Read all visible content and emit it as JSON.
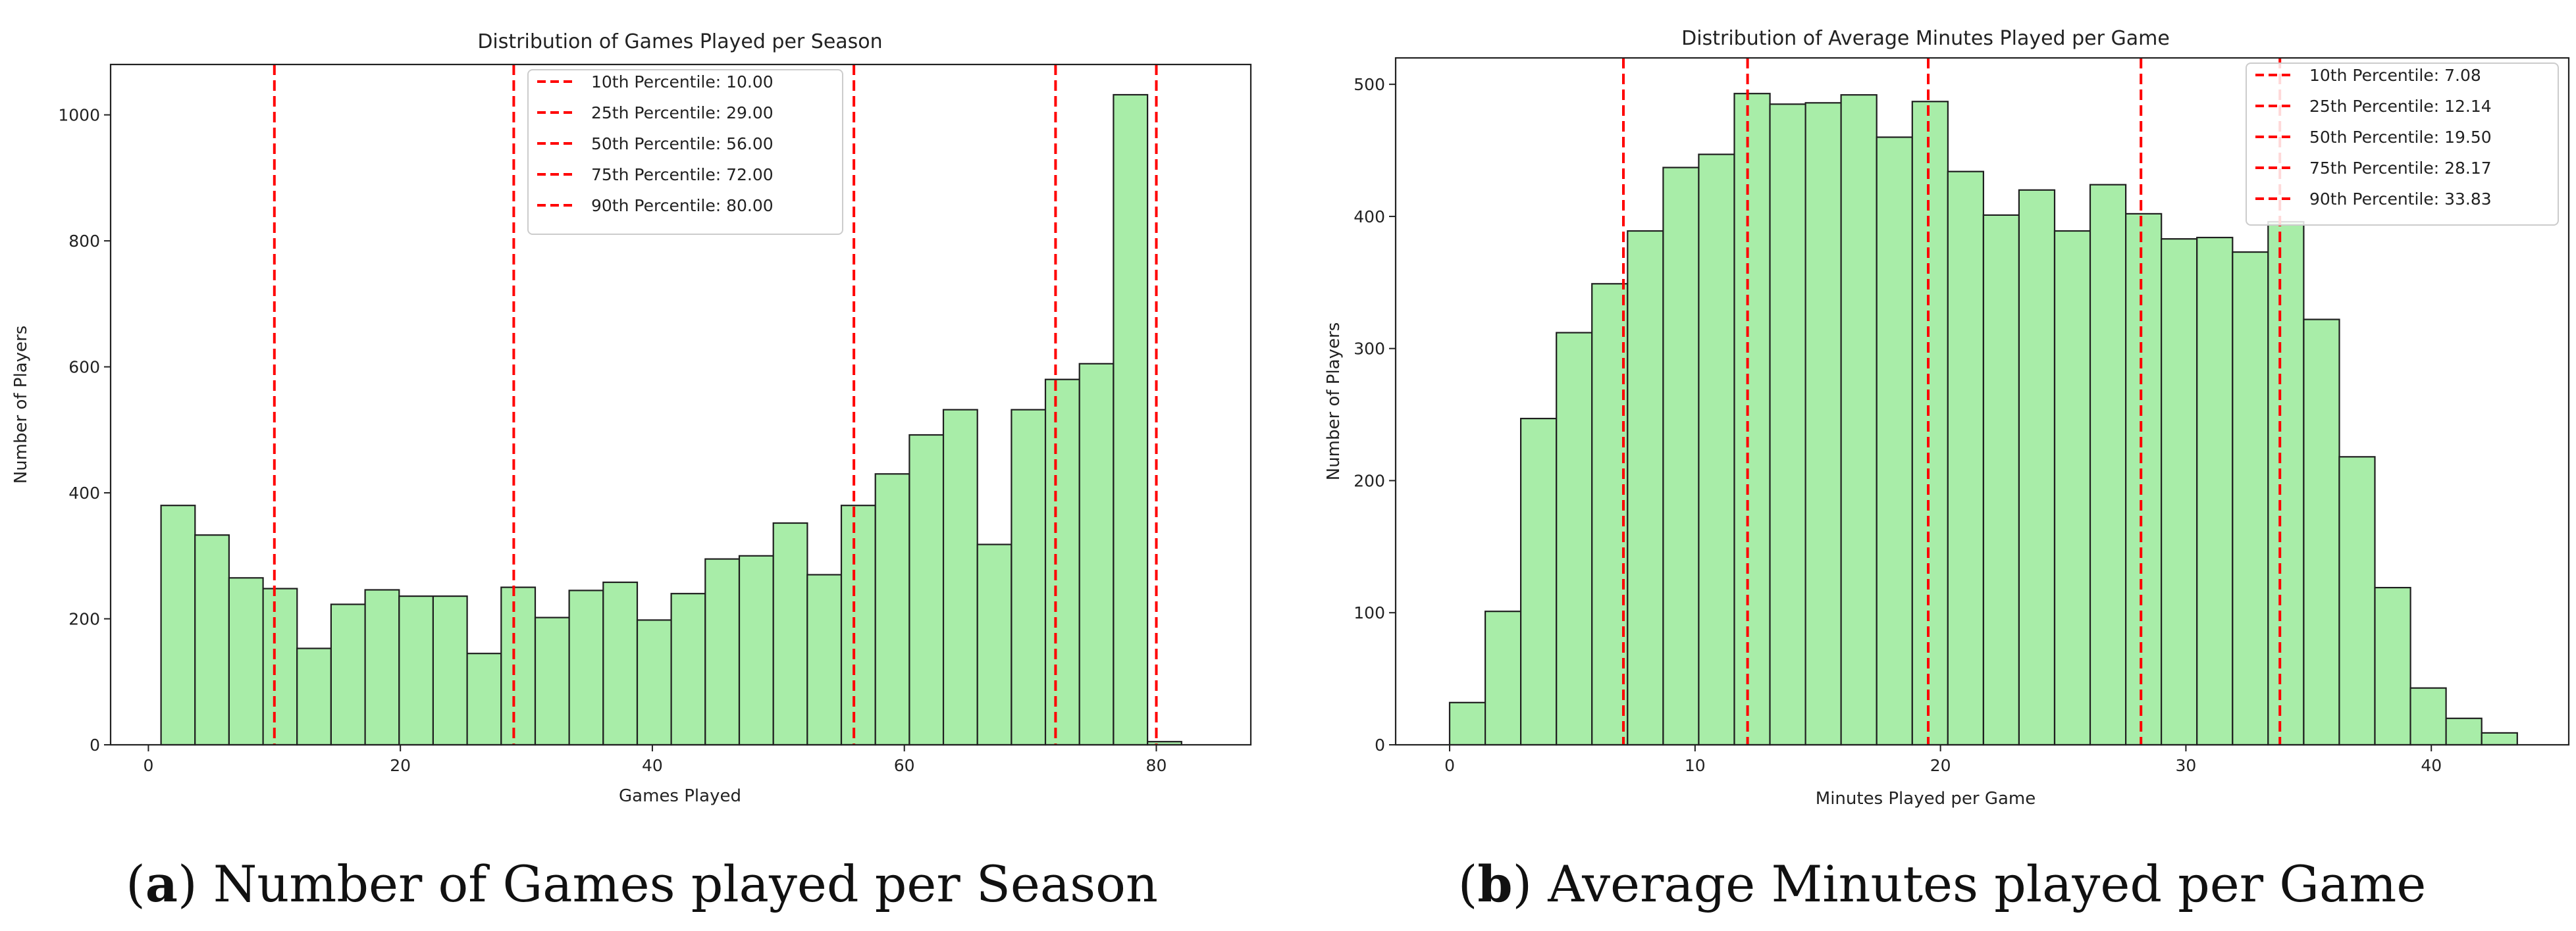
{
  "chart_data": [
    {
      "type": "bar",
      "panel": "a",
      "title": "Distribution of Games Played per Season",
      "xlabel": "Games Played",
      "ylabel": "Number of Players",
      "caption_letter": "a",
      "caption_text": "Number of Games played per Season",
      "bin_start": 1,
      "bin_width": 2.7,
      "values": [
        380,
        333,
        265,
        248,
        153,
        223,
        246,
        236,
        236,
        145,
        250,
        202,
        245,
        258,
        198,
        240,
        295,
        300,
        352,
        270,
        380,
        430,
        492,
        532,
        318,
        532,
        580,
        605,
        1032,
        5
      ],
      "xlim": [
        -3,
        87.5
      ],
      "ylim": [
        0,
        1080
      ],
      "xticks": [
        0,
        20,
        40,
        60,
        80
      ],
      "yticks": [
        0,
        200,
        400,
        600,
        800,
        1000
      ],
      "bar_color": "#a8eda8",
      "percentile_color": "#ff0000",
      "legend_position": "top-right",
      "percentiles": [
        {
          "label": "10th Percentile: 10.00",
          "value": 10.0
        },
        {
          "label": "25th Percentile: 29.00",
          "value": 29.0
        },
        {
          "label": "50th Percentile: 56.00",
          "value": 56.0
        },
        {
          "label": "75th Percentile: 72.00",
          "value": 72.0
        },
        {
          "label": "90th Percentile: 80.00",
          "value": 80.0
        }
      ]
    },
    {
      "type": "bar",
      "panel": "b",
      "title": "Distribution of Average Minutes Played per Game",
      "xlabel": "Minutes Played per Game",
      "ylabel": "Number of Players",
      "caption_letter": "b",
      "caption_text": "Average Minutes played per Game",
      "bin_start": 0,
      "bin_width": 1.45,
      "values": [
        32,
        101,
        247,
        312,
        349,
        389,
        437,
        447,
        493,
        485,
        486,
        492,
        460,
        487,
        434,
        401,
        420,
        389,
        424,
        402,
        383,
        384,
        373,
        396,
        322,
        218,
        119,
        43,
        20,
        9
      ],
      "xlim": [
        -2.2,
        45.6
      ],
      "ylim": [
        0,
        520
      ],
      "xticks": [
        0,
        10,
        20,
        30,
        40
      ],
      "yticks": [
        0,
        100,
        200,
        300,
        400,
        500
      ],
      "bar_color": "#a8eda8",
      "percentile_color": "#ff0000",
      "legend_position": "top-right",
      "percentiles": [
        {
          "label": "10th Percentile: 7.08",
          "value": 7.08
        },
        {
          "label": "25th Percentile: 12.14",
          "value": 12.14
        },
        {
          "label": "50th Percentile: 19.50",
          "value": 19.5
        },
        {
          "label": "75th Percentile: 28.17",
          "value": 28.17
        },
        {
          "label": "90th Percentile: 33.83",
          "value": 33.83
        }
      ]
    }
  ]
}
